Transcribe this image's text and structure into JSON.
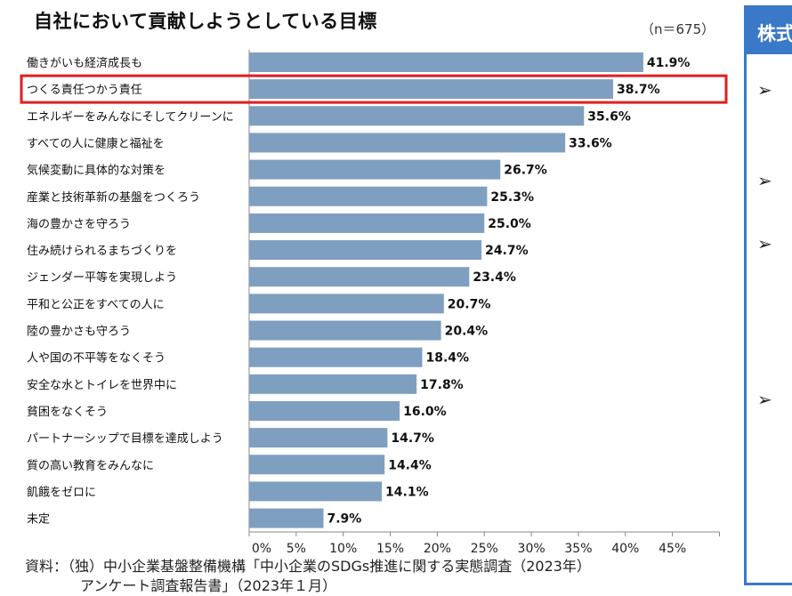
{
  "title": "自社において貢献しようとしている目標",
  "sample_size": "（n＝675）",
  "chart_data": {
    "type": "bar",
    "orientation": "horizontal",
    "categories": [
      "働きがいも経済成長も",
      "つくる責任つかう責任",
      "エネルギーをみんなにそしてクリーンに",
      "すべての人に健康と福祉を",
      "気候変動に具体的な対策を",
      "産業と技術革新の基盤をつくろう",
      "海の豊かさを守ろう",
      "住み続けられるまちづくりを",
      "ジェンダー平等を実現しよう",
      "平和と公正をすべての人に",
      "陸の豊かさも守ろう",
      "人や国の不平等をなくそう",
      "安全な水とトイレを世界中に",
      "貧困をなくそう",
      "パートナーシップで目標を達成しよう",
      "質の高い教育をみんなに",
      "飢餓をゼロに",
      "未定"
    ],
    "values": [
      41.9,
      38.7,
      35.6,
      33.6,
      26.7,
      25.3,
      25.0,
      24.7,
      23.4,
      20.7,
      20.4,
      18.4,
      17.8,
      16.0,
      14.7,
      14.4,
      14.1,
      7.9
    ],
    "value_labels": [
      "41.9%",
      "38.7%",
      "35.6%",
      "33.6%",
      "26.7%",
      "25.3%",
      "25.0%",
      "24.7%",
      "23.4%",
      "20.7%",
      "20.4%",
      "18.4%",
      "17.8%",
      "16.0%",
      "14.7%",
      "14.4%",
      "14.1%",
      "7.9%"
    ],
    "highlighted_category": "つくる責任つかう責任",
    "x_ticks": [
      0,
      5,
      10,
      15,
      20,
      25,
      30,
      35,
      40,
      45
    ],
    "x_tick_labels": [
      "0%",
      "5%",
      "10%",
      "15%",
      "20%",
      "25%",
      "30%",
      "35%",
      "40%",
      "45%"
    ],
    "xlim": [
      0,
      50
    ],
    "xlabel": "",
    "ylabel": "",
    "grid": false
  },
  "source_lines": [
    "資料：（独）中小企業基盤整備機構「中小企業のSDGs推進に関する実態調査（2023年）",
    "アンケート調査報告書」（2023年１月）"
  ],
  "side_panel": {
    "header": "株式",
    "bullet_icon": "➢"
  },
  "colors": {
    "bar": "#7f9fc0",
    "highlight_box": "#e02020",
    "panel_border": "#3a78c8"
  }
}
